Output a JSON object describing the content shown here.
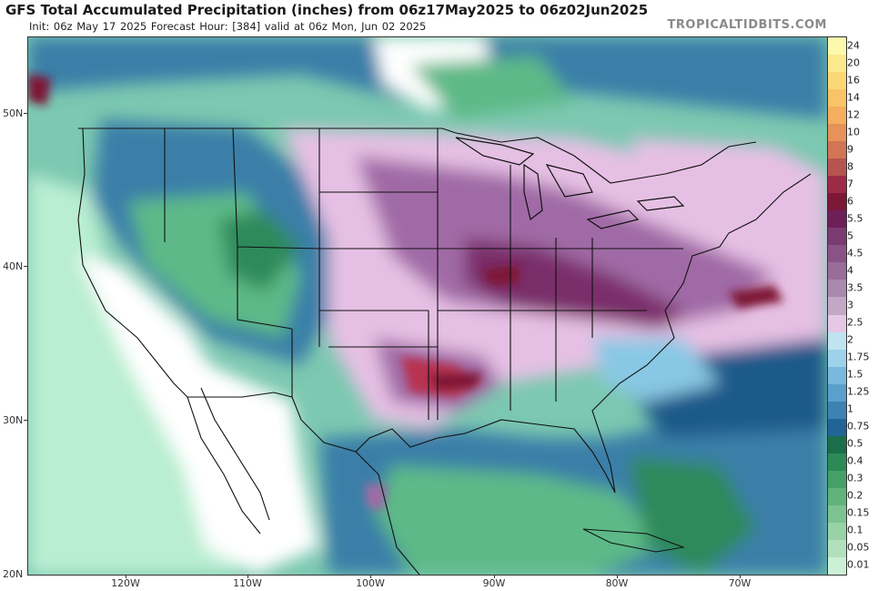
{
  "header": {
    "title": "GFS Total Accumulated Precipitation (inches) from 06z17May2025 to 06z02Jun2025",
    "subtitle": "Init: 06z May 17 2025   Forecast Hour: [384]   valid at 06z Mon, Jun 02 2025",
    "brand": "TROPICALTIDBITS.COM"
  },
  "map": {
    "lat_labels": [
      "50N",
      "40N",
      "30N",
      "20N"
    ],
    "lon_labels": [
      "120W",
      "110W",
      "100W",
      "90W",
      "80W",
      "70W"
    ],
    "colors": {
      "zero": "#ffffff",
      "light_green": "#b9eed2",
      "mid_green": "#5db987",
      "dark_green": "#2e8a5a",
      "blue": "#3b7fa8",
      "dark_blue": "#1d5a8a",
      "light_blue": "#88c8e4",
      "lavender": "#e6c0e4",
      "purple": "#a06aa6",
      "dark_purple": "#7a2e6a",
      "maroon": "#7e1636",
      "red": "#b83250"
    }
  },
  "legend": {
    "levels": [
      "24",
      "20",
      "16",
      "14",
      "12",
      "10",
      "9",
      "8",
      "7",
      "6",
      "5.5",
      "5",
      "4.5",
      "4",
      "3.5",
      "3",
      "2.5",
      "2",
      "1.75",
      "1.5",
      "1.25",
      "1",
      "0.75",
      "0.5",
      "0.4",
      "0.3",
      "0.2",
      "0.15",
      "0.1",
      "0.05",
      "0.01"
    ],
    "colors": [
      "#fcf8ae",
      "#fce98d",
      "#fbd875",
      "#f9c467",
      "#f4ae5e",
      "#e6925a",
      "#d17555",
      "#b65451",
      "#9c2c46",
      "#7d1737",
      "#6e1f58",
      "#7b3a72",
      "#8a5387",
      "#986d98",
      "#a989ad",
      "#c3a8c6",
      "#e4c8e6",
      "#bfe3f1",
      "#9ed2ea",
      "#7ab9dd",
      "#5b9fcc",
      "#3c83b4",
      "#236496",
      "#1b6e4a",
      "#2d8a57",
      "#45a068",
      "#62b27c",
      "#7dc391",
      "#98d2a6",
      "#b2e0bc",
      "#cbf0d6"
    ]
  }
}
